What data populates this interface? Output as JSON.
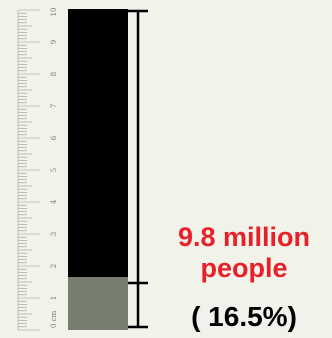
{
  "ruler": {
    "unit": "cm",
    "numbers": [
      "0 cm",
      "1",
      "2",
      "3",
      "4",
      "5",
      "6",
      "7",
      "8",
      "9",
      "10"
    ]
  },
  "column": {
    "share": 0.165,
    "bar_color": "#000000",
    "fill_color": "#777e70"
  },
  "label": {
    "amount": "9.8 million\npeople",
    "percent": "( 16.5%)",
    "amount_color": "#e8202a",
    "percent_color": "#000000"
  }
}
